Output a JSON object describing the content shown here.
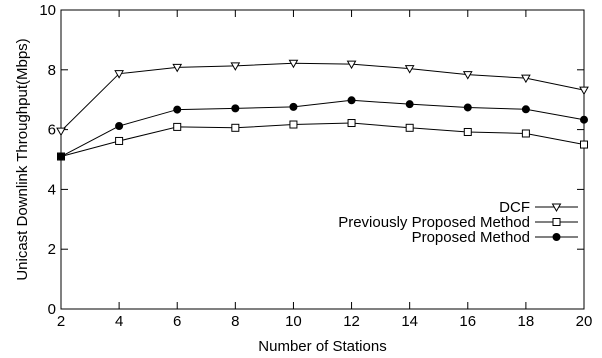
{
  "chart_data": {
    "type": "line",
    "xlabel": "Number of Stations",
    "ylabel": "Unicast Downlink Throughput(Mbps)",
    "x": [
      2,
      4,
      6,
      8,
      10,
      12,
      14,
      16,
      18,
      20
    ],
    "xlim": [
      2,
      20
    ],
    "ylim": [
      0,
      10
    ],
    "xticks": [
      2,
      4,
      6,
      8,
      10,
      12,
      14,
      16,
      18,
      20
    ],
    "yticks": [
      0,
      2,
      4,
      6,
      8,
      10
    ],
    "grid": false,
    "legend_position": "center-right",
    "series": [
      {
        "name": "DCF",
        "marker": "triangle-down-open",
        "color": "#000000",
        "values": [
          5.95,
          7.87,
          8.08,
          8.13,
          8.22,
          8.19,
          8.04,
          7.84,
          7.72,
          7.32
        ]
      },
      {
        "name": "Previously Proposed Method",
        "marker": "square-open",
        "color": "#000000",
        "values": [
          5.1,
          5.62,
          6.09,
          6.06,
          6.17,
          6.22,
          6.06,
          5.92,
          5.87,
          5.5
        ]
      },
      {
        "name": "Proposed Method",
        "marker": "circle-filled",
        "color": "#000000",
        "values": [
          5.1,
          6.12,
          6.67,
          6.71,
          6.76,
          6.98,
          6.85,
          6.74,
          6.68,
          6.33
        ]
      }
    ]
  }
}
